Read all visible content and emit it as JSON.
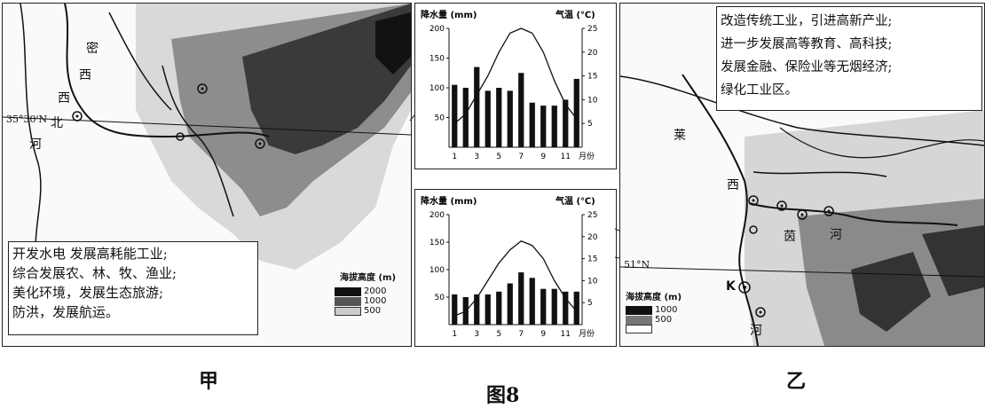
{
  "figure_caption": "图8",
  "map_jia": {
    "caption": "甲",
    "place_labels": [
      "密",
      "西",
      "西",
      "北",
      "河"
    ],
    "lat_label": "35°30'N",
    "measures": [
      "开发水电  发展高耗能工业;",
      "综合发展农、林、牧、渔业;",
      "美化环境，发展生态旅游;",
      "防洪，发展航运。"
    ],
    "legend": {
      "title": "海拔高度 (m)",
      "levels": [
        "2000",
        "1000",
        "500"
      ]
    }
  },
  "map_yi": {
    "caption": "乙",
    "place_labels": [
      "莱",
      "茵",
      "河",
      "河",
      "西"
    ],
    "lat_label": "51°N",
    "city_label": "K",
    "measures": [
      "改造传统工业，引进高新产业;",
      "进一步发展高等教育、高科技;",
      "发展金融、保险业等无烟经济;",
      "绿化工业区。"
    ],
    "legend": {
      "title": "海拔高度 (m)",
      "levels": [
        "1000",
        "500"
      ]
    }
  },
  "chart_data": [
    {
      "type": "bar",
      "title": "",
      "ylabel": "降水量 (mm)",
      "y2label": "气温 (℃)",
      "xlabel": "月份",
      "categories": [
        "1",
        "2",
        "3",
        "4",
        "5",
        "6",
        "7",
        "8",
        "9",
        "10",
        "11",
        "12"
      ],
      "x_ticks": [
        "1",
        "3",
        "5",
        "7",
        "9",
        "11"
      ],
      "ylim": [
        0,
        200
      ],
      "y_ticks": [
        "50",
        "100",
        "150",
        "200"
      ],
      "y2lim": [
        0,
        25
      ],
      "y2_ticks": [
        "5",
        "10",
        "15",
        "20",
        "25"
      ],
      "series": [
        {
          "name": "降水量",
          "kind": "bar",
          "values": [
            105,
            100,
            135,
            95,
            100,
            95,
            125,
            75,
            70,
            70,
            80,
            115
          ]
        },
        {
          "name": "气温",
          "kind": "line",
          "values": [
            5,
            7,
            11,
            15,
            20,
            24,
            25,
            24,
            20,
            14,
            9,
            6
          ]
        }
      ]
    },
    {
      "type": "bar",
      "title": "",
      "ylabel": "降水量 (mm)",
      "y2label": "气温 (℃)",
      "xlabel": "月份",
      "categories": [
        "1",
        "2",
        "3",
        "4",
        "5",
        "6",
        "7",
        "8",
        "9",
        "10",
        "11",
        "12"
      ],
      "x_ticks": [
        "1",
        "3",
        "5",
        "7",
        "9",
        "11"
      ],
      "ylim": [
        0,
        200
      ],
      "y_ticks": [
        "50",
        "100",
        "150",
        "200"
      ],
      "y2lim": [
        0,
        25
      ],
      "y2_ticks": [
        "5",
        "10",
        "15",
        "20",
        "25"
      ],
      "series": [
        {
          "name": "降水量",
          "kind": "bar",
          "values": [
            55,
            50,
            55,
            55,
            60,
            75,
            95,
            85,
            65,
            65,
            60,
            60
          ]
        },
        {
          "name": "气温",
          "kind": "line",
          "values": [
            2,
            3,
            6,
            10,
            14,
            17,
            19,
            18,
            15,
            10,
            6,
            3
          ]
        }
      ]
    }
  ]
}
